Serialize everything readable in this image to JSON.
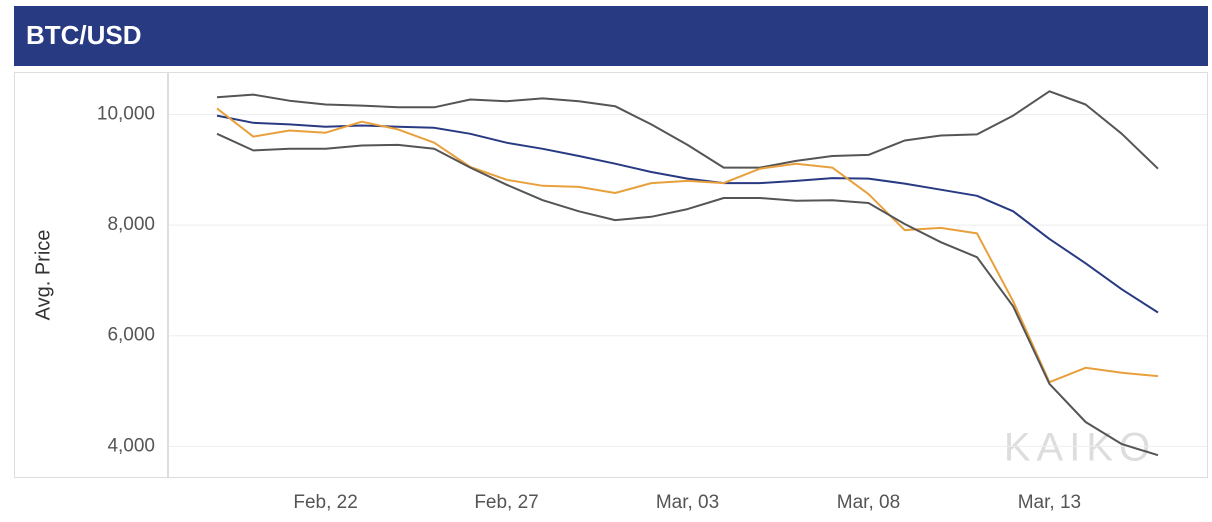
{
  "chart_data": {
    "type": "line",
    "title": "BTC/USD",
    "y_label": "Avg. Price",
    "watermark": "KAIKO",
    "categories": [
      null,
      null,
      null,
      "Feb, 22",
      null,
      null,
      null,
      null,
      "Feb, 27",
      null,
      null,
      null,
      null,
      "Mar, 03",
      null,
      null,
      null,
      null,
      "Mar, 08",
      null,
      null,
      null,
      null,
      "Mar, 13",
      null,
      null,
      null
    ],
    "series": [
      {
        "color": "#555555",
        "values": [
          10310,
          10360,
          10250,
          10180,
          10160,
          10130,
          10130,
          10270,
          10240,
          10290,
          10240,
          10150,
          9820,
          9450,
          9040,
          9040,
          9160,
          9250,
          9270,
          9530,
          9620,
          9640,
          9980,
          10420,
          10180,
          9650,
          9020
        ]
      },
      {
        "color": "#283a82",
        "values": [
          9980,
          9850,
          9820,
          9780,
          9800,
          9780,
          9760,
          9650,
          9490,
          9380,
          9250,
          9110,
          8960,
          8840,
          8760,
          8760,
          8800,
          8850,
          8840,
          8750,
          8640,
          8530,
          8250,
          7750,
          7310,
          6840,
          6420
        ]
      },
      {
        "color": "#e8a03c",
        "values": [
          10110,
          9600,
          9710,
          9670,
          9870,
          9730,
          9490,
          9050,
          8820,
          8710,
          8690,
          8580,
          8760,
          8800,
          8760,
          9020,
          9110,
          9040,
          8560,
          7910,
          7950,
          7850,
          6620,
          5160,
          5420,
          5330,
          5270
        ]
      },
      {
        "color": "#555555",
        "values": [
          9650,
          9350,
          9380,
          9380,
          9440,
          9450,
          9380,
          9040,
          8730,
          8450,
          8250,
          8090,
          8150,
          8290,
          8490,
          8490,
          8440,
          8450,
          8400,
          8020,
          7690,
          7420,
          6530,
          5130,
          4440,
          4040,
          3840
        ]
      }
    ],
    "ylim": [
      3500,
      10750
    ],
    "yticks": [
      {
        "value": 4000,
        "label": "4,000"
      },
      {
        "value": 6000,
        "label": "6,000"
      },
      {
        "value": 8000,
        "label": "8,000"
      },
      {
        "value": 10000,
        "label": "10,000"
      }
    ],
    "grid": true
  }
}
